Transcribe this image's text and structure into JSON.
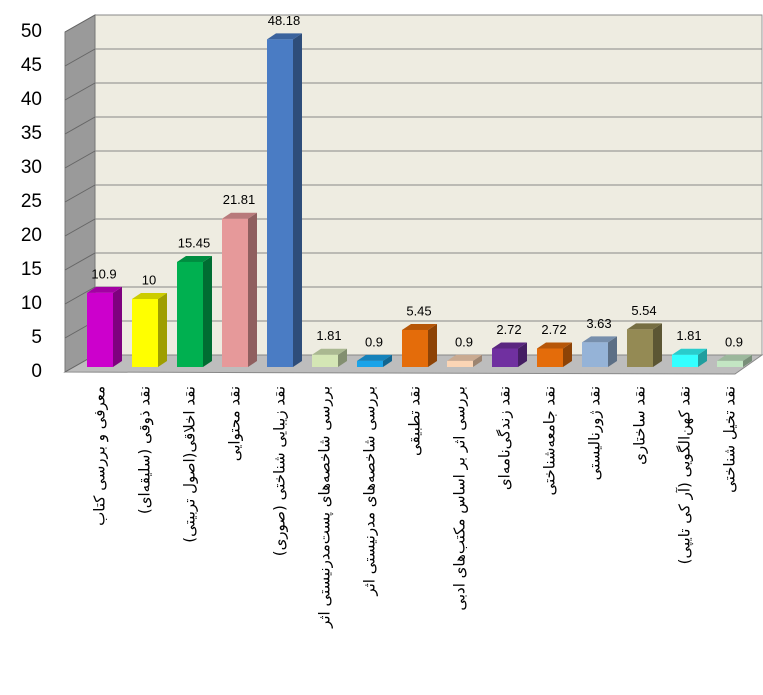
{
  "chart_data": {
    "type": "bar3d",
    "categories": [
      "معرفی و بررسی کتاب",
      "نقد ذوقی (سلیقه‌ای)",
      "نقد اخلاقی(اصول تربیتی)",
      "نقد محتوایی",
      "نقد زیبایی شناختی (صوری)",
      "بررسی شاخصه‌های پست‌مدرنیستی اثر",
      "بررسی شاخصه‌های مدرنیستی اثر",
      "نقد تطبیقی",
      "بررسی اثر بر اساس مکتب‌های ادبی",
      "نقد زندگی‌نامه‌ای",
      "نقد جامعه‌شناختی",
      "نقد ژورنالیستی",
      "نقد ساختاری",
      "نقد کهن‌الگویی (آر کی تایپی)",
      "نقد تخیل شناختی"
    ],
    "values": [
      10.9,
      10,
      15.45,
      21.81,
      48.18,
      1.81,
      0.9,
      5.45,
      0.9,
      2.72,
      2.72,
      3.63,
      5.54,
      1.81,
      0.9
    ],
    "colors": [
      "#cc00cc",
      "#ffff00",
      "#00b050",
      "#e6999a",
      "#4a7cc4",
      "#d4e6b5",
      "#1aa3e8",
      "#e46c0a",
      "#fbd5b5",
      "#7030a0",
      "#e46c0a",
      "#95b3d7",
      "#948a54",
      "#33ffff",
      "#c3e6c3"
    ],
    "ylim": [
      0,
      50
    ],
    "yticks": [
      0,
      5,
      10,
      15,
      20,
      25,
      30,
      35,
      40,
      45,
      50
    ],
    "grid": true
  }
}
